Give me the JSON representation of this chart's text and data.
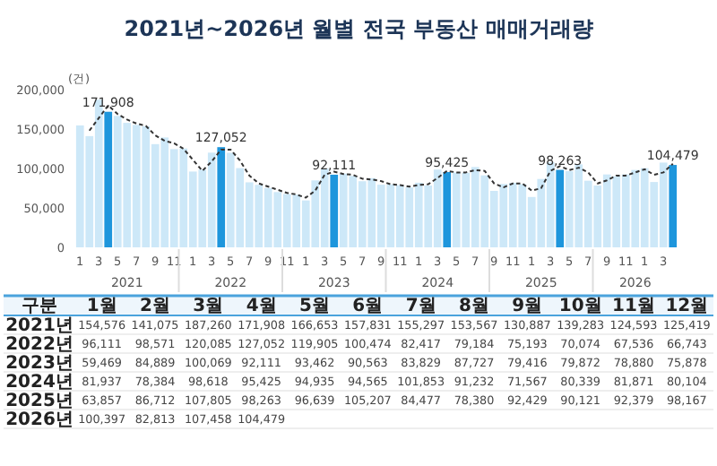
{
  "chart_data": [
    {
      "type": "bar",
      "title": "2021년~2026년 월별 전국 부동산 매매거래량",
      "ylabel": "(건)",
      "categories": [
        "1",
        null,
        "3",
        null,
        "5",
        null,
        "7",
        null,
        "9",
        null,
        "11",
        null,
        "1",
        null,
        "3",
        null,
        "5",
        null,
        "7",
        null,
        "9",
        null,
        "11",
        null,
        "1",
        null,
        "3",
        null,
        "5",
        null,
        "7",
        null,
        "9",
        null,
        "11",
        null,
        "1",
        null,
        "3",
        null,
        "5",
        null,
        "7",
        null,
        "9",
        null,
        "11",
        null,
        "1",
        null,
        "3",
        null,
        "5",
        null,
        "7",
        null,
        "9",
        null,
        "11",
        null,
        "1",
        null,
        "3",
        null
      ],
      "series": [
        {
          "type": "bar",
          "colors": [
            "#cde8f8",
            "#cde8f8",
            "#cde8f8",
            "#1e96dc",
            "#cde8f8",
            "#cde8f8",
            "#cde8f8",
            "#cde8f8",
            "#cde8f8",
            "#cde8f8",
            "#cde8f8",
            "#cde8f8",
            "#cde8f8",
            "#cde8f8",
            "#cde8f8",
            "#1e96dc",
            "#cde8f8",
            "#cde8f8",
            "#cde8f8",
            "#cde8f8",
            "#cde8f8",
            "#cde8f8",
            "#cde8f8",
            "#cde8f8",
            "#cde8f8",
            "#cde8f8",
            "#cde8f8",
            "#1e96dc",
            "#cde8f8",
            "#cde8f8",
            "#cde8f8",
            "#cde8f8",
            "#cde8f8",
            "#cde8f8",
            "#cde8f8",
            "#cde8f8",
            "#cde8f8",
            "#cde8f8",
            "#cde8f8",
            "#1e96dc",
            "#cde8f8",
            "#cde8f8",
            "#cde8f8",
            "#cde8f8",
            "#cde8f8",
            "#cde8f8",
            "#cde8f8",
            "#cde8f8",
            "#cde8f8",
            "#cde8f8",
            "#cde8f8",
            "#1e96dc",
            "#cde8f8",
            "#cde8f8",
            "#cde8f8",
            "#cde8f8",
            "#cde8f8",
            "#cde8f8",
            "#cde8f8",
            "#cde8f8",
            "#cde8f8",
            "#cde8f8",
            "#cde8f8",
            "#1e96dc"
          ],
          "values": [
            154576,
            141075,
            187260,
            171908,
            166653,
            157831,
            155297,
            153567,
            130887,
            139283,
            124593,
            125419,
            96111,
            98571,
            120085,
            127052,
            119905,
            100474,
            82417,
            79184,
            75193,
            70074,
            67536,
            66743,
            59469,
            84889,
            100069,
            92111,
            93462,
            90563,
            83829,
            87727,
            79416,
            79872,
            78880,
            75878,
            81937,
            78384,
            98618,
            95425,
            94935,
            94565,
            101853,
            91232,
            71567,
            80339,
            81871,
            80104,
            63857,
            86712,
            107805,
            98263,
            96639,
            105207,
            84477,
            78380,
            92429,
            90121,
            92379,
            98167,
            100397,
            82813,
            107458,
            104479
          ],
          "value_labels": [
            null,
            null,
            null,
            "171,908",
            null,
            null,
            null,
            null,
            null,
            null,
            null,
            null,
            null,
            null,
            null,
            "127,052",
            null,
            null,
            null,
            null,
            null,
            null,
            null,
            null,
            null,
            null,
            null,
            "92,111",
            null,
            null,
            null,
            null,
            null,
            null,
            null,
            null,
            null,
            null,
            null,
            "95,425",
            null,
            null,
            null,
            null,
            null,
            null,
            null,
            null,
            null,
            null,
            null,
            "98,263",
            null,
            null,
            null,
            null,
            null,
            null,
            null,
            null,
            null,
            null,
            null,
            "104,479"
          ]
        },
        {
          "type": "line",
          "color": "#333333",
          "line_style": "dashed",
          "marker": "none",
          "values": [
            null,
            148000,
            164000,
            180000,
            169000,
            162000,
            157000,
            154000,
            142000,
            135000,
            132000,
            125000,
            111000,
            97000,
            109000,
            124000,
            124000,
            110000,
            91000,
            81000,
            77000,
            73000,
            69000,
            67000,
            63000,
            72000,
            92000,
            96000,
            93000,
            92000,
            87000,
            86000,
            84000,
            80000,
            79000,
            77000,
            79000,
            80000,
            88000,
            97000,
            95000,
            95000,
            98000,
            97000,
            81000,
            76000,
            81000,
            81000,
            72000,
            75000,
            97000,
            103000,
            98000,
            101000,
            95000,
            81000,
            85000,
            91000,
            91000,
            95000,
            99000,
            92000,
            95000,
            106000
          ]
        }
      ],
      "ylim": [
        0,
        200000
      ],
      "yticks": [
        {
          "value": 0,
          "label": "0"
        },
        {
          "value": 50000,
          "label": "50,000"
        },
        {
          "value": 100000,
          "label": "100,000"
        },
        {
          "value": 150000,
          "label": "150,000"
        },
        {
          "value": 200000,
          "label": "200,000"
        }
      ],
      "annotations": [
        "2021",
        "2022",
        "2023",
        "2024",
        "2025",
        "2026"
      ]
    },
    {
      "type": "heatmap",
      "ylabel": "구분",
      "data_labels": true,
      "categories": [
        "1월",
        "2월",
        "3월",
        "4월",
        "5월",
        "6월",
        "7월",
        "8월",
        "9월",
        "10월",
        "11월",
        "12월"
      ],
      "y_categories": [
        "2021년",
        "2022년",
        "2023년",
        "2024년",
        "2025년",
        "2026년"
      ],
      "cells": [
        [
          154576,
          141075,
          187260,
          171908,
          166653,
          157831,
          155297,
          153567,
          130887,
          139283,
          124593,
          125419
        ],
        [
          96111,
          98571,
          120085,
          127052,
          119905,
          100474,
          82417,
          79184,
          75193,
          70074,
          67536,
          66743
        ],
        [
          59469,
          84889,
          100069,
          92111,
          93462,
          90563,
          83829,
          87727,
          79416,
          79872,
          78880,
          75878
        ],
        [
          81937,
          78384,
          98618,
          95425,
          94935,
          94565,
          101853,
          91232,
          71567,
          80339,
          81871,
          80104
        ],
        [
          63857,
          86712,
          107805,
          98263,
          96639,
          105207,
          84477,
          78380,
          92429,
          90121,
          92379,
          98167
        ],
        [
          100397,
          82813,
          107458,
          104479,
          null,
          null,
          null,
          null,
          null,
          null,
          null,
          null
        ]
      ],
      "cell_labels": [
        [
          "154,576",
          "141,075",
          "187,260",
          "171,908",
          "166,653",
          "157,831",
          "155,297",
          "153,567",
          "130,887",
          "139,283",
          "124,593",
          "125,419"
        ],
        [
          "96,111",
          "98,571",
          "120,085",
          "127,052",
          "119,905",
          "100,474",
          "82,417",
          "79,184",
          "75,193",
          "70,074",
          "67,536",
          "66,743"
        ],
        [
          "59,469",
          "84,889",
          "100,069",
          "92,111",
          "93,462",
          "90,563",
          "83,829",
          "87,727",
          "79,416",
          "79,872",
          "78,880",
          "75,878"
        ],
        [
          "81,937",
          "78,384",
          "98,618",
          "95,425",
          "94,935",
          "94,565",
          "101,853",
          "91,232",
          "71,567",
          "80,339",
          "81,871",
          "80,104"
        ],
        [
          "63,857",
          "86,712",
          "107,805",
          "98,263",
          "96,639",
          "105,207",
          "84,477",
          "78,380",
          "92,429",
          "90,121",
          "92,379",
          "98,167"
        ],
        [
          "100,397",
          "82,813",
          "107,458",
          "104,479",
          null,
          null,
          null,
          null,
          null,
          null,
          null,
          null
        ]
      ]
    }
  ]
}
